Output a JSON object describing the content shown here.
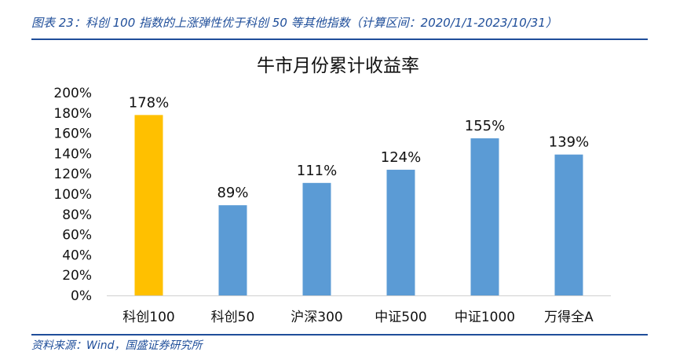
{
  "caption": "图表 23：科创 100 指数的上涨弹性优于科创 50 等其他指数（计算区间：2020/1/1-2023/10/31）",
  "source": "资料来源：Wind，国盛证券研究所",
  "chart_data": {
    "type": "bar",
    "title": "牛市月份累计收益率",
    "categories": [
      "科创100",
      "科创50",
      "沪深300",
      "中证500",
      "中证1000",
      "万得全A"
    ],
    "values": [
      178,
      89,
      111,
      124,
      155,
      139
    ],
    "data_labels": [
      "178%",
      "89%",
      "111%",
      "124%",
      "155%",
      "139%"
    ],
    "ylim": [
      0,
      200
    ],
    "yticks": [
      0,
      20,
      40,
      60,
      80,
      100,
      120,
      140,
      160,
      180,
      200
    ],
    "ytick_labels": [
      "0%",
      "20%",
      "40%",
      "60%",
      "80%",
      "100%",
      "120%",
      "140%",
      "160%",
      "180%",
      "200%"
    ],
    "grid": false,
    "highlight_index": 0,
    "colors": {
      "highlight": "#ffc000",
      "bar": "#5b9bd5",
      "axis": "#d0d0d0",
      "text": "#111111"
    }
  }
}
